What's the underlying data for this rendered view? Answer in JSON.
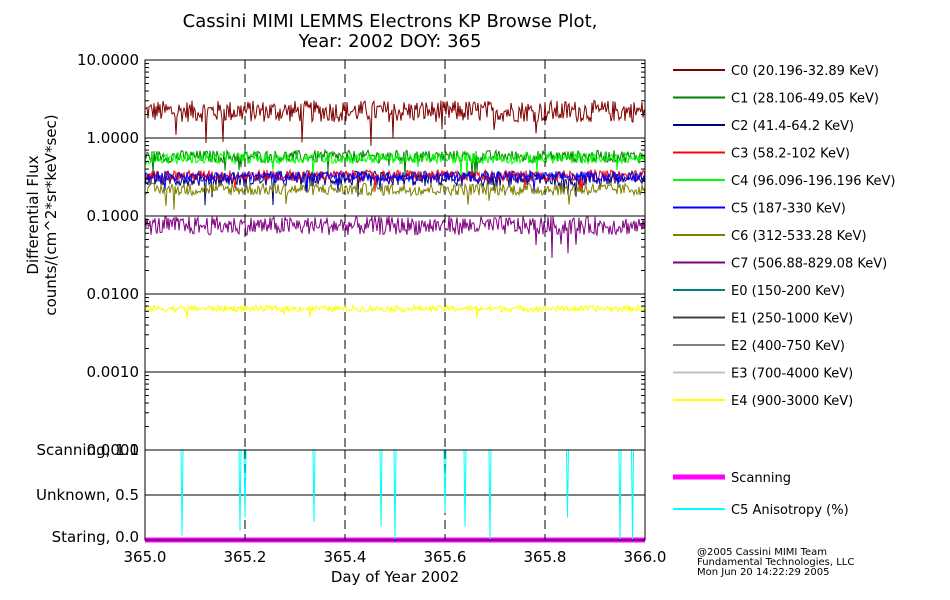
{
  "chart_data": [
    {
      "type": "line",
      "title": "Cassini MIMI LEMMS Electrons KP Browse Plot,",
      "subtitle": "Year: 2002 DOY: 365",
      "ylabel_line1": "Differential Flux",
      "ylabel_line2": "counts/(cm^2*sr*keV*sec)",
      "y_scale": "log",
      "ylim": [
        0.0001,
        10
      ],
      "y_ticks": [
        {
          "value": 10,
          "label": "10.0000"
        },
        {
          "value": 1,
          "label": "1.0000"
        },
        {
          "value": 0.1,
          "label": "0.1000"
        },
        {
          "value": 0.01,
          "label": "0.0100"
        },
        {
          "value": 0.001,
          "label": "0.0010"
        },
        {
          "value": 0.0001,
          "label": "0.0001"
        }
      ],
      "xlim": [
        365.0,
        366.0
      ],
      "grid": true,
      "legend_position": "right",
      "series": [
        {
          "name": "C0 (20.196-32.89 KeV)",
          "color": "#800000",
          "level": 2.2,
          "jitter": 0.14
        },
        {
          "name": "C1 (28.106-49.05 KeV)",
          "color": "#008000",
          "level": 0.58,
          "jitter": 0.08
        },
        {
          "name": "C2 (41.4-64.2 KeV)",
          "color": "#000080",
          "level": 0.3,
          "jitter": 0.1
        },
        {
          "name": "C3 (58.2-102 KeV)",
          "color": "#ff0000",
          "level": 0.33,
          "jitter": 0.07
        },
        {
          "name": "C4 (96.096-196.196 KeV)",
          "color": "#00ff00",
          "level": 0.55,
          "jitter": 0.07
        },
        {
          "name": "C5 (187-330 KeV)",
          "color": "#0000ff",
          "level": 0.32,
          "jitter": 0.06
        },
        {
          "name": "C6 (312-533.28 KeV)",
          "color": "#808000",
          "level": 0.22,
          "jitter": 0.08
        },
        {
          "name": "C7 (506.88-829.08 KeV)",
          "color": "#800080",
          "level": 0.075,
          "jitter": 0.12
        },
        {
          "name": "E0 (150-200 KeV)",
          "color": "#008080",
          "level": null,
          "jitter": 0
        },
        {
          "name": "E1 (250-1000 KeV)",
          "color": "#404040",
          "level": null,
          "jitter": 0
        },
        {
          "name": "E2 (400-750 KeV)",
          "color": "#808080",
          "level": null,
          "jitter": 0
        },
        {
          "name": "E3 (700-4000 KeV)",
          "color": "#c0c0c0",
          "level": null,
          "jitter": 0
        },
        {
          "name": "E4 (900-3000 KeV)",
          "color": "#ffff00",
          "level": 0.0065,
          "jitter": 0.04
        }
      ]
    },
    {
      "type": "line",
      "xlabel": "Day of Year 2002",
      "xlim": [
        365.0,
        366.0
      ],
      "x_ticks": [
        {
          "value": 365.0,
          "label": "365.0"
        },
        {
          "value": 365.2,
          "label": "365.2"
        },
        {
          "value": 365.4,
          "label": "365.4"
        },
        {
          "value": 365.6,
          "label": "365.6"
        },
        {
          "value": 365.8,
          "label": "365.8"
        },
        {
          "value": 366.0,
          "label": "366.0"
        }
      ],
      "ylim": [
        0,
        1
      ],
      "y_ticks": [
        {
          "value": 1.0,
          "label": "Scanning, 1.0"
        },
        {
          "value": 0.5,
          "label": "Unknown, 0.5"
        },
        {
          "value": 0.0,
          "label": "Staring, 0.0"
        }
      ],
      "legend_position": "right",
      "series": [
        {
          "name": "Scanning",
          "color": "#ff00ff",
          "values": [
            0,
            0
          ]
        },
        {
          "name": "C5 Anisotropy (%)",
          "color": "#00ffff",
          "baseline": 1.0,
          "dips": [
            {
              "x": 365.074,
              "y": 0.05
            },
            {
              "x": 365.19,
              "y": 0.1
            },
            {
              "x": 365.2,
              "y": 0.25
            },
            {
              "x": 365.338,
              "y": 0.2
            },
            {
              "x": 365.472,
              "y": 0.15
            },
            {
              "x": 365.5,
              "y": 0.0
            },
            {
              "x": 365.6,
              "y": 0.3
            },
            {
              "x": 365.64,
              "y": 0.15
            },
            {
              "x": 365.69,
              "y": 0.0
            },
            {
              "x": 365.845,
              "y": 0.25
            },
            {
              "x": 365.95,
              "y": 0.0
            },
            {
              "x": 365.975,
              "y": 0.0
            }
          ]
        }
      ]
    }
  ],
  "footer": {
    "line1": "@2005 Cassini MIMI Team",
    "line2": "Fundamental Technologies, LLC",
    "line3": "Mon Jun 20 14:22:29 2005"
  }
}
